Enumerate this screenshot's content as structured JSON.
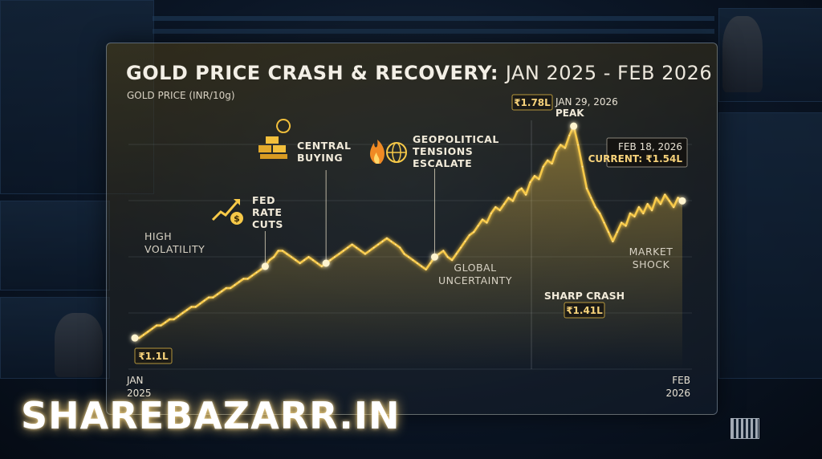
{
  "header": {
    "title_bold": "GOLD PRICE CRASH & RECOVERY:",
    "title_light": "JAN 2025 - FEB 2026",
    "subtitle": "GOLD PRICE (INR/10g)"
  },
  "watermark": "SHAREBAZARR.IN",
  "colors": {
    "line": "#f7c948",
    "glow": "#ffd76a",
    "text": "#f3efe6",
    "label_bg": "#1b1a16"
  },
  "chart_data": {
    "type": "line",
    "title": "GOLD PRICE CRASH & RECOVERY: JAN 2025 - FEB 2026",
    "ylabel": "GOLD PRICE (INR/10g)",
    "x_start_label": [
      "JAN",
      "2025"
    ],
    "x_end_label": [
      "FEB",
      "2026"
    ],
    "ylim": [
      1.0,
      1.85
    ],
    "y_unit": "₹ lakh",
    "series": [
      {
        "values": [
          1.1,
          1.1,
          1.11,
          1.12,
          1.13,
          1.14,
          1.14,
          1.15,
          1.16,
          1.16,
          1.17,
          1.18,
          1.19,
          1.2,
          1.2,
          1.21,
          1.22,
          1.23,
          1.23,
          1.24,
          1.25,
          1.26,
          1.26,
          1.27,
          1.28,
          1.29,
          1.29,
          1.3,
          1.31,
          1.32,
          1.33,
          1.35,
          1.36,
          1.38,
          1.38,
          1.37,
          1.36,
          1.35,
          1.34,
          1.35,
          1.36,
          1.35,
          1.34,
          1.33,
          1.34,
          1.35,
          1.36,
          1.37,
          1.38,
          1.39,
          1.4,
          1.39,
          1.38,
          1.37,
          1.38,
          1.39,
          1.4,
          1.41,
          1.42,
          1.41,
          1.4,
          1.39,
          1.37,
          1.36,
          1.35,
          1.34,
          1.33,
          1.32,
          1.34,
          1.36,
          1.37,
          1.38,
          1.36,
          1.35,
          1.37,
          1.39,
          1.41,
          1.43,
          1.44,
          1.46,
          1.48,
          1.47,
          1.5,
          1.52,
          1.51,
          1.53,
          1.55,
          1.54,
          1.57,
          1.58,
          1.56,
          1.6,
          1.62,
          1.61,
          1.65,
          1.67,
          1.66,
          1.7,
          1.72,
          1.71,
          1.75,
          1.78,
          1.72,
          1.65,
          1.58,
          1.55,
          1.52,
          1.5,
          1.47,
          1.44,
          1.41,
          1.44,
          1.47,
          1.46,
          1.5,
          1.49,
          1.52,
          1.5,
          1.53,
          1.51,
          1.55,
          1.53,
          1.56,
          1.54,
          1.52,
          1.55,
          1.54
        ]
      }
    ],
    "annotations": [
      {
        "text": "₹1.1L",
        "index": 0,
        "kind": "start_value"
      },
      {
        "text": "HIGH VOLATILITY",
        "index": 8,
        "kind": "region"
      },
      {
        "text": "FED RATE CUTS",
        "index": 30,
        "kind": "event",
        "icon": "rate-cut-chart-icon"
      },
      {
        "text": "CENTRAL BUYING",
        "index": 44,
        "kind": "event",
        "icon": "gold-bars-icon"
      },
      {
        "text": "GEOPOLITICAL TENSIONS ESCALATE",
        "index": 69,
        "kind": "event",
        "icon": "fire-globe-icon"
      },
      {
        "text": "GLOBAL UNCERTAINTY",
        "index": 76,
        "kind": "region"
      },
      {
        "text": "₹1.78L",
        "index": 101,
        "kind": "peak_value"
      },
      {
        "text": "JAN 29, 2026",
        "index": 101,
        "kind": "peak_date"
      },
      {
        "text": "PEAK",
        "index": 101,
        "kind": "peak_label"
      },
      {
        "text": "SHARP CRASH",
        "index": 110,
        "kind": "crash_label"
      },
      {
        "text": "₹1.41L",
        "index": 110,
        "kind": "crash_value"
      },
      {
        "text": "MARKET SHOCK",
        "index": 118,
        "kind": "region"
      },
      {
        "text": "FEB 18, 2026",
        "index": 126,
        "kind": "current_date"
      },
      {
        "text": "CURRENT: ₹1.54L",
        "index": 126,
        "kind": "current_value"
      }
    ]
  }
}
